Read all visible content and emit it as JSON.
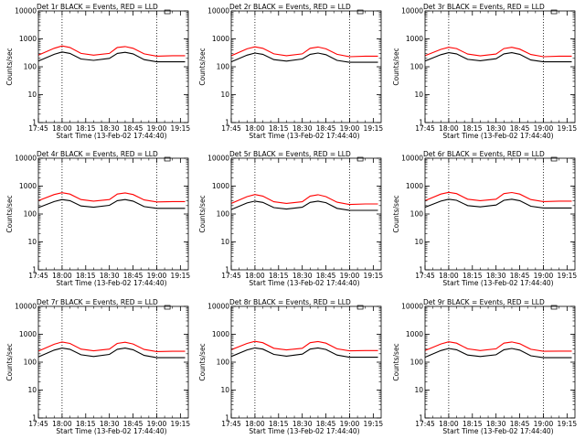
{
  "figure": {
    "panel_title_suffix": " BLACK = Events, RED = LLD",
    "xlabel": "Start Time (13-Feb-02 17:44:40)",
    "ylabel": "Counts/sec",
    "colors": {
      "events": "#000000",
      "lld": "#ff0000",
      "axes": "#000000"
    },
    "dashed_line_positions_min": [
      15,
      75
    ]
  },
  "chart_data": [
    {
      "type": "line",
      "title": "Det 1r",
      "xlabel": "Start Time (13-Feb-02 17:44:40)",
      "ylabel": "Counts/sec",
      "x_ticks": [
        "17:45",
        "18:00",
        "18:15",
        "18:30",
        "18:45",
        "19:00",
        "19:15"
      ],
      "y_ticks": [
        "1",
        "10",
        "100",
        "1000",
        "10000"
      ],
      "y_scale": "log",
      "xlim": [
        0,
        95
      ],
      "ylim": [
        1,
        10000
      ],
      "series": [
        {
          "name": "BLACK = Events",
          "x": [
            0,
            10,
            15,
            20,
            27,
            35,
            45,
            50,
            55,
            60,
            67,
            75,
            85,
            93
          ],
          "y": [
            160,
            280,
            340,
            300,
            190,
            170,
            200,
            300,
            330,
            290,
            180,
            150,
            150,
            150
          ]
        },
        {
          "name": "RED = LLD",
          "x": [
            0,
            10,
            15,
            20,
            27,
            35,
            45,
            50,
            55,
            60,
            67,
            75,
            85,
            93
          ],
          "y": [
            260,
            460,
            560,
            490,
            300,
            260,
            300,
            490,
            530,
            460,
            290,
            240,
            250,
            250
          ]
        }
      ]
    },
    {
      "type": "line",
      "title": "Det 2r",
      "xlabel": "Start Time (13-Feb-02 17:44:40)",
      "ylabel": "Counts/sec",
      "x_ticks": [
        "17:45",
        "18:00",
        "18:15",
        "18:30",
        "18:45",
        "19:00",
        "19:15"
      ],
      "y_ticks": [
        "1",
        "10",
        "100",
        "1000",
        "10000"
      ],
      "y_scale": "log",
      "xlim": [
        0,
        95
      ],
      "ylim": [
        1,
        10000
      ],
      "series": [
        {
          "name": "BLACK = Events",
          "x": [
            0,
            10,
            15,
            20,
            27,
            35,
            45,
            50,
            55,
            60,
            67,
            75,
            85,
            93
          ],
          "y": [
            150,
            260,
            310,
            280,
            180,
            160,
            190,
            280,
            310,
            270,
            170,
            145,
            145,
            145
          ]
        },
        {
          "name": "RED = LLD",
          "x": [
            0,
            10,
            15,
            20,
            27,
            35,
            45,
            50,
            55,
            60,
            67,
            75,
            85,
            93
          ],
          "y": [
            250,
            440,
            520,
            460,
            290,
            250,
            290,
            460,
            510,
            440,
            280,
            230,
            240,
            240
          ]
        }
      ]
    },
    {
      "type": "line",
      "title": "Det 3r",
      "xlabel": "Start Time (13-Feb-02 17:44:40)",
      "ylabel": "Counts/sec",
      "x_ticks": [
        "17:45",
        "18:00",
        "18:15",
        "18:30",
        "18:45",
        "19:00",
        "19:15"
      ],
      "y_ticks": [
        "1",
        "10",
        "100",
        "1000",
        "10000"
      ],
      "y_scale": "log",
      "xlim": [
        0,
        95
      ],
      "ylim": [
        1,
        10000
      ],
      "series": [
        {
          "name": "BLACK = Events",
          "x": [
            0,
            10,
            15,
            20,
            27,
            35,
            45,
            50,
            55,
            60,
            67,
            75,
            85,
            93
          ],
          "y": [
            160,
            270,
            320,
            290,
            185,
            165,
            195,
            290,
            320,
            280,
            175,
            150,
            150,
            150
          ]
        },
        {
          "name": "RED = LLD",
          "x": [
            0,
            10,
            15,
            20,
            27,
            35,
            45,
            50,
            55,
            60,
            67,
            75,
            85,
            93
          ],
          "y": [
            250,
            420,
            500,
            450,
            285,
            245,
            285,
            450,
            500,
            430,
            275,
            230,
            240,
            240
          ]
        }
      ]
    },
    {
      "type": "line",
      "title": "Det 4r",
      "xlabel": "Start Time (13-Feb-02 17:44:40)",
      "ylabel": "Counts/sec",
      "x_ticks": [
        "17:45",
        "18:00",
        "18:15",
        "18:30",
        "18:45",
        "19:00",
        "19:15"
      ],
      "y_ticks": [
        "1",
        "10",
        "100",
        "1000",
        "10000"
      ],
      "y_scale": "log",
      "xlim": [
        0,
        95
      ],
      "ylim": [
        1,
        10000
      ],
      "series": [
        {
          "name": "BLACK = Events",
          "x": [
            0,
            10,
            15,
            20,
            27,
            35,
            45,
            50,
            55,
            60,
            67,
            75,
            85,
            93
          ],
          "y": [
            170,
            280,
            330,
            300,
            195,
            175,
            205,
            300,
            330,
            290,
            185,
            160,
            160,
            160
          ]
        },
        {
          "name": "RED = LLD",
          "x": [
            0,
            10,
            15,
            20,
            27,
            35,
            45,
            50,
            55,
            60,
            67,
            75,
            85,
            93
          ],
          "y": [
            300,
            500,
            580,
            520,
            330,
            290,
            330,
            520,
            570,
            500,
            320,
            270,
            280,
            280
          ]
        }
      ]
    },
    {
      "type": "line",
      "title": "Det 5r",
      "xlabel": "Start Time (13-Feb-02 17:44:40)",
      "ylabel": "Counts/sec",
      "x_ticks": [
        "17:45",
        "18:00",
        "18:15",
        "18:30",
        "18:45",
        "19:00",
        "19:15"
      ],
      "y_ticks": [
        "1",
        "10",
        "100",
        "1000",
        "10000"
      ],
      "y_scale": "log",
      "xlim": [
        0,
        95
      ],
      "ylim": [
        1,
        10000
      ],
      "series": [
        {
          "name": "BLACK = Events",
          "x": [
            0,
            10,
            15,
            20,
            27,
            35,
            45,
            50,
            55,
            60,
            67,
            75,
            85,
            93
          ],
          "y": [
            145,
            250,
            290,
            260,
            170,
            150,
            175,
            260,
            290,
            255,
            160,
            135,
            135,
            135
          ]
        },
        {
          "name": "RED = LLD",
          "x": [
            0,
            10,
            15,
            20,
            27,
            35,
            45,
            50,
            55,
            60,
            67,
            75,
            85,
            93
          ],
          "y": [
            240,
            420,
            500,
            440,
            275,
            240,
            275,
            440,
            490,
            420,
            265,
            220,
            230,
            230
          ]
        }
      ]
    },
    {
      "type": "line",
      "title": "Det 6r",
      "xlabel": "Start Time (13-Feb-02 17:44:40)",
      "ylabel": "Counts/sec",
      "x_ticks": [
        "17:45",
        "18:00",
        "18:15",
        "18:30",
        "18:45",
        "19:00",
        "19:15"
      ],
      "y_ticks": [
        "1",
        "10",
        "100",
        "1000",
        "10000"
      ],
      "y_scale": "log",
      "xlim": [
        0,
        95
      ],
      "ylim": [
        1,
        10000
      ],
      "series": [
        {
          "name": "BLACK = Events",
          "x": [
            0,
            10,
            15,
            20,
            27,
            35,
            45,
            50,
            55,
            60,
            67,
            75,
            85,
            93
          ],
          "y": [
            175,
            290,
            340,
            310,
            200,
            180,
            210,
            310,
            340,
            300,
            190,
            165,
            165,
            165
          ]
        },
        {
          "name": "RED = LLD",
          "x": [
            0,
            10,
            15,
            20,
            27,
            35,
            45,
            50,
            55,
            60,
            67,
            75,
            85,
            93
          ],
          "y": [
            300,
            520,
            600,
            540,
            340,
            300,
            340,
            540,
            590,
            520,
            330,
            280,
            290,
            290
          ]
        }
      ]
    },
    {
      "type": "line",
      "title": "Det 7r",
      "xlabel": "Start Time (13-Feb-02 17:44:40)",
      "ylabel": "Counts/sec",
      "x_ticks": [
        "17:45",
        "18:00",
        "18:15",
        "18:30",
        "18:45",
        "19:00",
        "19:15"
      ],
      "y_ticks": [
        "1",
        "10",
        "100",
        "1000",
        "10000"
      ],
      "y_scale": "log",
      "xlim": [
        0,
        95
      ],
      "ylim": [
        1,
        10000
      ],
      "series": [
        {
          "name": "BLACK = Events",
          "x": [
            0,
            10,
            15,
            20,
            27,
            35,
            45,
            50,
            55,
            60,
            67,
            75,
            85,
            93
          ],
          "y": [
            155,
            270,
            320,
            290,
            185,
            160,
            190,
            290,
            320,
            280,
            175,
            145,
            145,
            145
          ]
        },
        {
          "name": "RED = LLD",
          "x": [
            0,
            10,
            15,
            20,
            27,
            35,
            45,
            50,
            55,
            60,
            67,
            75,
            85,
            93
          ],
          "y": [
            250,
            440,
            530,
            470,
            295,
            255,
            295,
            470,
            520,
            450,
            285,
            240,
            245,
            245
          ]
        }
      ]
    },
    {
      "type": "line",
      "title": "Det 8r",
      "xlabel": "Start Time (13-Feb-02 17:44:40)",
      "ylabel": "Counts/sec",
      "x_ticks": [
        "17:45",
        "18:00",
        "18:15",
        "18:30",
        "18:45",
        "19:00",
        "19:15"
      ],
      "y_ticks": [
        "1",
        "10",
        "100",
        "1000",
        "10000"
      ],
      "y_scale": "log",
      "xlim": [
        0,
        95
      ],
      "ylim": [
        1,
        10000
      ],
      "series": [
        {
          "name": "BLACK = Events",
          "x": [
            0,
            10,
            15,
            20,
            27,
            35,
            45,
            50,
            55,
            60,
            67,
            75,
            85,
            93
          ],
          "y": [
            160,
            275,
            325,
            295,
            190,
            165,
            195,
            295,
            325,
            285,
            180,
            150,
            150,
            150
          ]
        },
        {
          "name": "RED = LLD",
          "x": [
            0,
            10,
            15,
            20,
            27,
            35,
            45,
            50,
            55,
            60,
            67,
            75,
            85,
            93
          ],
          "y": [
            280,
            470,
            560,
            500,
            315,
            275,
            315,
            500,
            550,
            480,
            300,
            255,
            260,
            260
          ]
        }
      ]
    },
    {
      "type": "line",
      "title": "Det 9r",
      "xlabel": "Start Time (13-Feb-02 17:44:40)",
      "ylabel": "Counts/sec",
      "x_ticks": [
        "17:45",
        "18:00",
        "18:15",
        "18:30",
        "18:45",
        "19:00",
        "19:15"
      ],
      "y_ticks": [
        "1",
        "10",
        "100",
        "1000",
        "10000"
      ],
      "y_scale": "log",
      "xlim": [
        0,
        95
      ],
      "ylim": [
        1,
        10000
      ],
      "series": [
        {
          "name": "BLACK = Events",
          "x": [
            0,
            10,
            15,
            20,
            27,
            35,
            45,
            50,
            55,
            60,
            67,
            75,
            85,
            93
          ],
          "y": [
            150,
            260,
            310,
            280,
            180,
            160,
            185,
            280,
            310,
            270,
            170,
            145,
            145,
            145
          ]
        },
        {
          "name": "RED = LLD",
          "x": [
            0,
            10,
            15,
            20,
            27,
            35,
            45,
            50,
            55,
            60,
            67,
            75,
            85,
            93
          ],
          "y": [
            260,
            450,
            540,
            480,
            300,
            260,
            300,
            480,
            530,
            460,
            290,
            245,
            250,
            250
          ]
        }
      ]
    }
  ]
}
